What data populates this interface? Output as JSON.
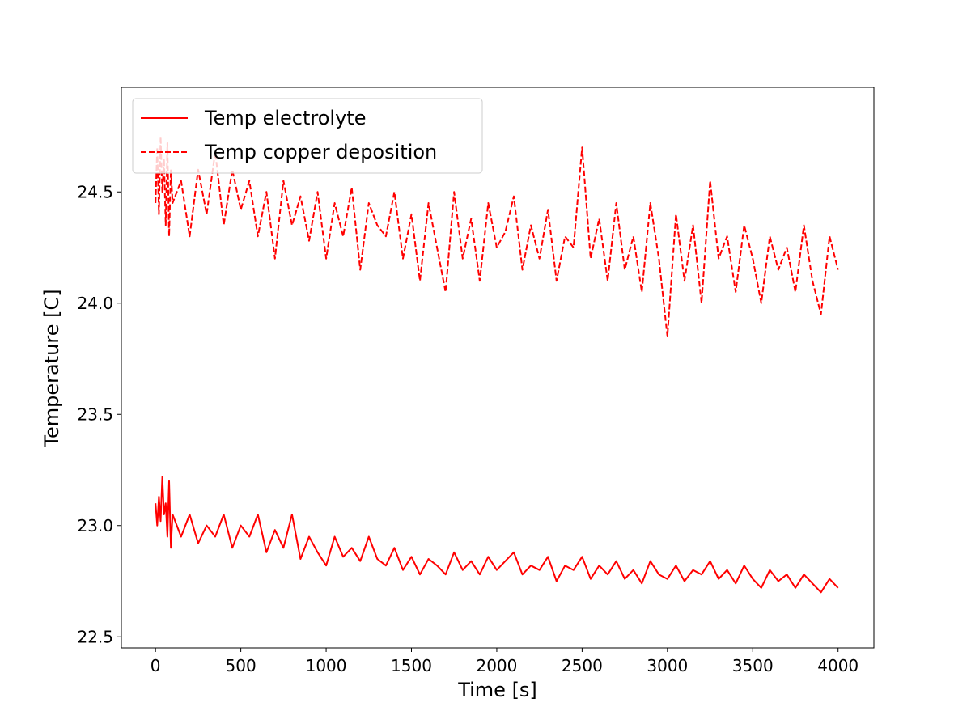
{
  "chart_data": {
    "type": "line",
    "title": "",
    "xlabel": "Time [s]",
    "ylabel": "Temperature [C]",
    "xlim": [
      -200,
      4210
    ],
    "ylim": [
      22.45,
      24.97
    ],
    "xticks": [
      0,
      500,
      1000,
      1500,
      2000,
      2500,
      3000,
      3500,
      4000
    ],
    "yticks": [
      22.5,
      23.0,
      23.5,
      24.0,
      24.5
    ],
    "xtick_labels": [
      "0",
      "500",
      "1000",
      "1500",
      "2000",
      "2500",
      "3000",
      "3500",
      "4000"
    ],
    "ytick_labels": [
      "22.5",
      "23.0",
      "23.5",
      "24.0",
      "24.5"
    ],
    "grid": false,
    "legend_position": "top-left",
    "series": [
      {
        "name": "Temp electrolyte",
        "color": "#ff0000",
        "style": "solid",
        "x": [
          0,
          10,
          20,
          30,
          40,
          50,
          60,
          70,
          80,
          90,
          100,
          150,
          200,
          250,
          300,
          350,
          400,
          450,
          500,
          550,
          600,
          650,
          700,
          750,
          800,
          850,
          900,
          950,
          1000,
          1050,
          1100,
          1150,
          1200,
          1250,
          1300,
          1350,
          1400,
          1450,
          1500,
          1550,
          1600,
          1650,
          1700,
          1750,
          1800,
          1850,
          1900,
          1950,
          2000,
          2050,
          2100,
          2150,
          2200,
          2250,
          2300,
          2350,
          2400,
          2450,
          2500,
          2550,
          2600,
          2650,
          2700,
          2750,
          2800,
          2850,
          2900,
          2950,
          3000,
          3050,
          3100,
          3150,
          3200,
          3250,
          3300,
          3350,
          3400,
          3450,
          3500,
          3550,
          3600,
          3650,
          3700,
          3750,
          3800,
          3850,
          3900,
          3950,
          4000
        ],
        "y": [
          23.1,
          23.0,
          23.13,
          23.02,
          23.22,
          23.05,
          23.1,
          22.95,
          23.2,
          22.9,
          23.05,
          22.95,
          23.05,
          22.92,
          23.0,
          22.95,
          23.05,
          22.9,
          23.0,
          22.95,
          23.05,
          22.88,
          22.98,
          22.9,
          23.05,
          22.85,
          22.95,
          22.88,
          22.82,
          22.95,
          22.86,
          22.9,
          22.84,
          22.95,
          22.85,
          22.82,
          22.9,
          22.8,
          22.86,
          22.78,
          22.85,
          22.82,
          22.78,
          22.88,
          22.8,
          22.84,
          22.78,
          22.86,
          22.8,
          22.84,
          22.88,
          22.78,
          22.82,
          22.8,
          22.86,
          22.75,
          22.82,
          22.8,
          22.86,
          22.76,
          22.82,
          22.78,
          22.84,
          22.76,
          22.8,
          22.74,
          22.84,
          22.78,
          22.76,
          22.82,
          22.75,
          22.8,
          22.78,
          22.84,
          22.76,
          22.8,
          22.74,
          22.82,
          22.76,
          22.72,
          22.8,
          22.75,
          22.78,
          22.72,
          22.78,
          22.74,
          22.7,
          22.76,
          22.72
        ]
      },
      {
        "name": "Temp copper deposition",
        "color": "#ff0000",
        "style": "dashed",
        "x": [
          0,
          10,
          20,
          30,
          40,
          50,
          60,
          70,
          80,
          90,
          100,
          150,
          200,
          250,
          300,
          350,
          400,
          450,
          500,
          550,
          600,
          650,
          700,
          750,
          800,
          850,
          900,
          950,
          1000,
          1050,
          1100,
          1150,
          1200,
          1250,
          1300,
          1350,
          1400,
          1450,
          1500,
          1550,
          1600,
          1650,
          1700,
          1750,
          1800,
          1850,
          1900,
          1950,
          2000,
          2050,
          2100,
          2150,
          2200,
          2250,
          2300,
          2350,
          2400,
          2450,
          2500,
          2550,
          2600,
          2650,
          2700,
          2750,
          2800,
          2850,
          2900,
          2950,
          3000,
          3050,
          3100,
          3150,
          3200,
          3250,
          3300,
          3350,
          3400,
          3450,
          3500,
          3550,
          3600,
          3650,
          3700,
          3750,
          3800,
          3850,
          3900,
          3950,
          4000
        ],
        "y": [
          24.45,
          24.7,
          24.4,
          24.75,
          24.5,
          24.65,
          24.35,
          24.72,
          24.3,
          24.6,
          24.45,
          24.55,
          24.3,
          24.6,
          24.4,
          24.68,
          24.35,
          24.6,
          24.42,
          24.55,
          24.3,
          24.5,
          24.2,
          24.55,
          24.35,
          24.48,
          24.28,
          24.5,
          24.2,
          24.45,
          24.3,
          24.52,
          24.15,
          24.45,
          24.35,
          24.3,
          24.5,
          24.2,
          24.4,
          24.1,
          24.45,
          24.25,
          24.05,
          24.5,
          24.2,
          24.38,
          24.1,
          24.45,
          24.25,
          24.32,
          24.48,
          24.15,
          24.35,
          24.2,
          24.42,
          24.1,
          24.3,
          24.25,
          24.7,
          24.2,
          24.38,
          24.1,
          24.45,
          24.15,
          24.3,
          24.05,
          24.45,
          24.2,
          23.85,
          24.4,
          24.1,
          24.35,
          24.0,
          24.55,
          24.2,
          24.3,
          24.05,
          24.35,
          24.2,
          24.0,
          24.3,
          24.15,
          24.25,
          24.05,
          24.35,
          24.1,
          23.95,
          24.3,
          24.15
        ]
      }
    ]
  }
}
